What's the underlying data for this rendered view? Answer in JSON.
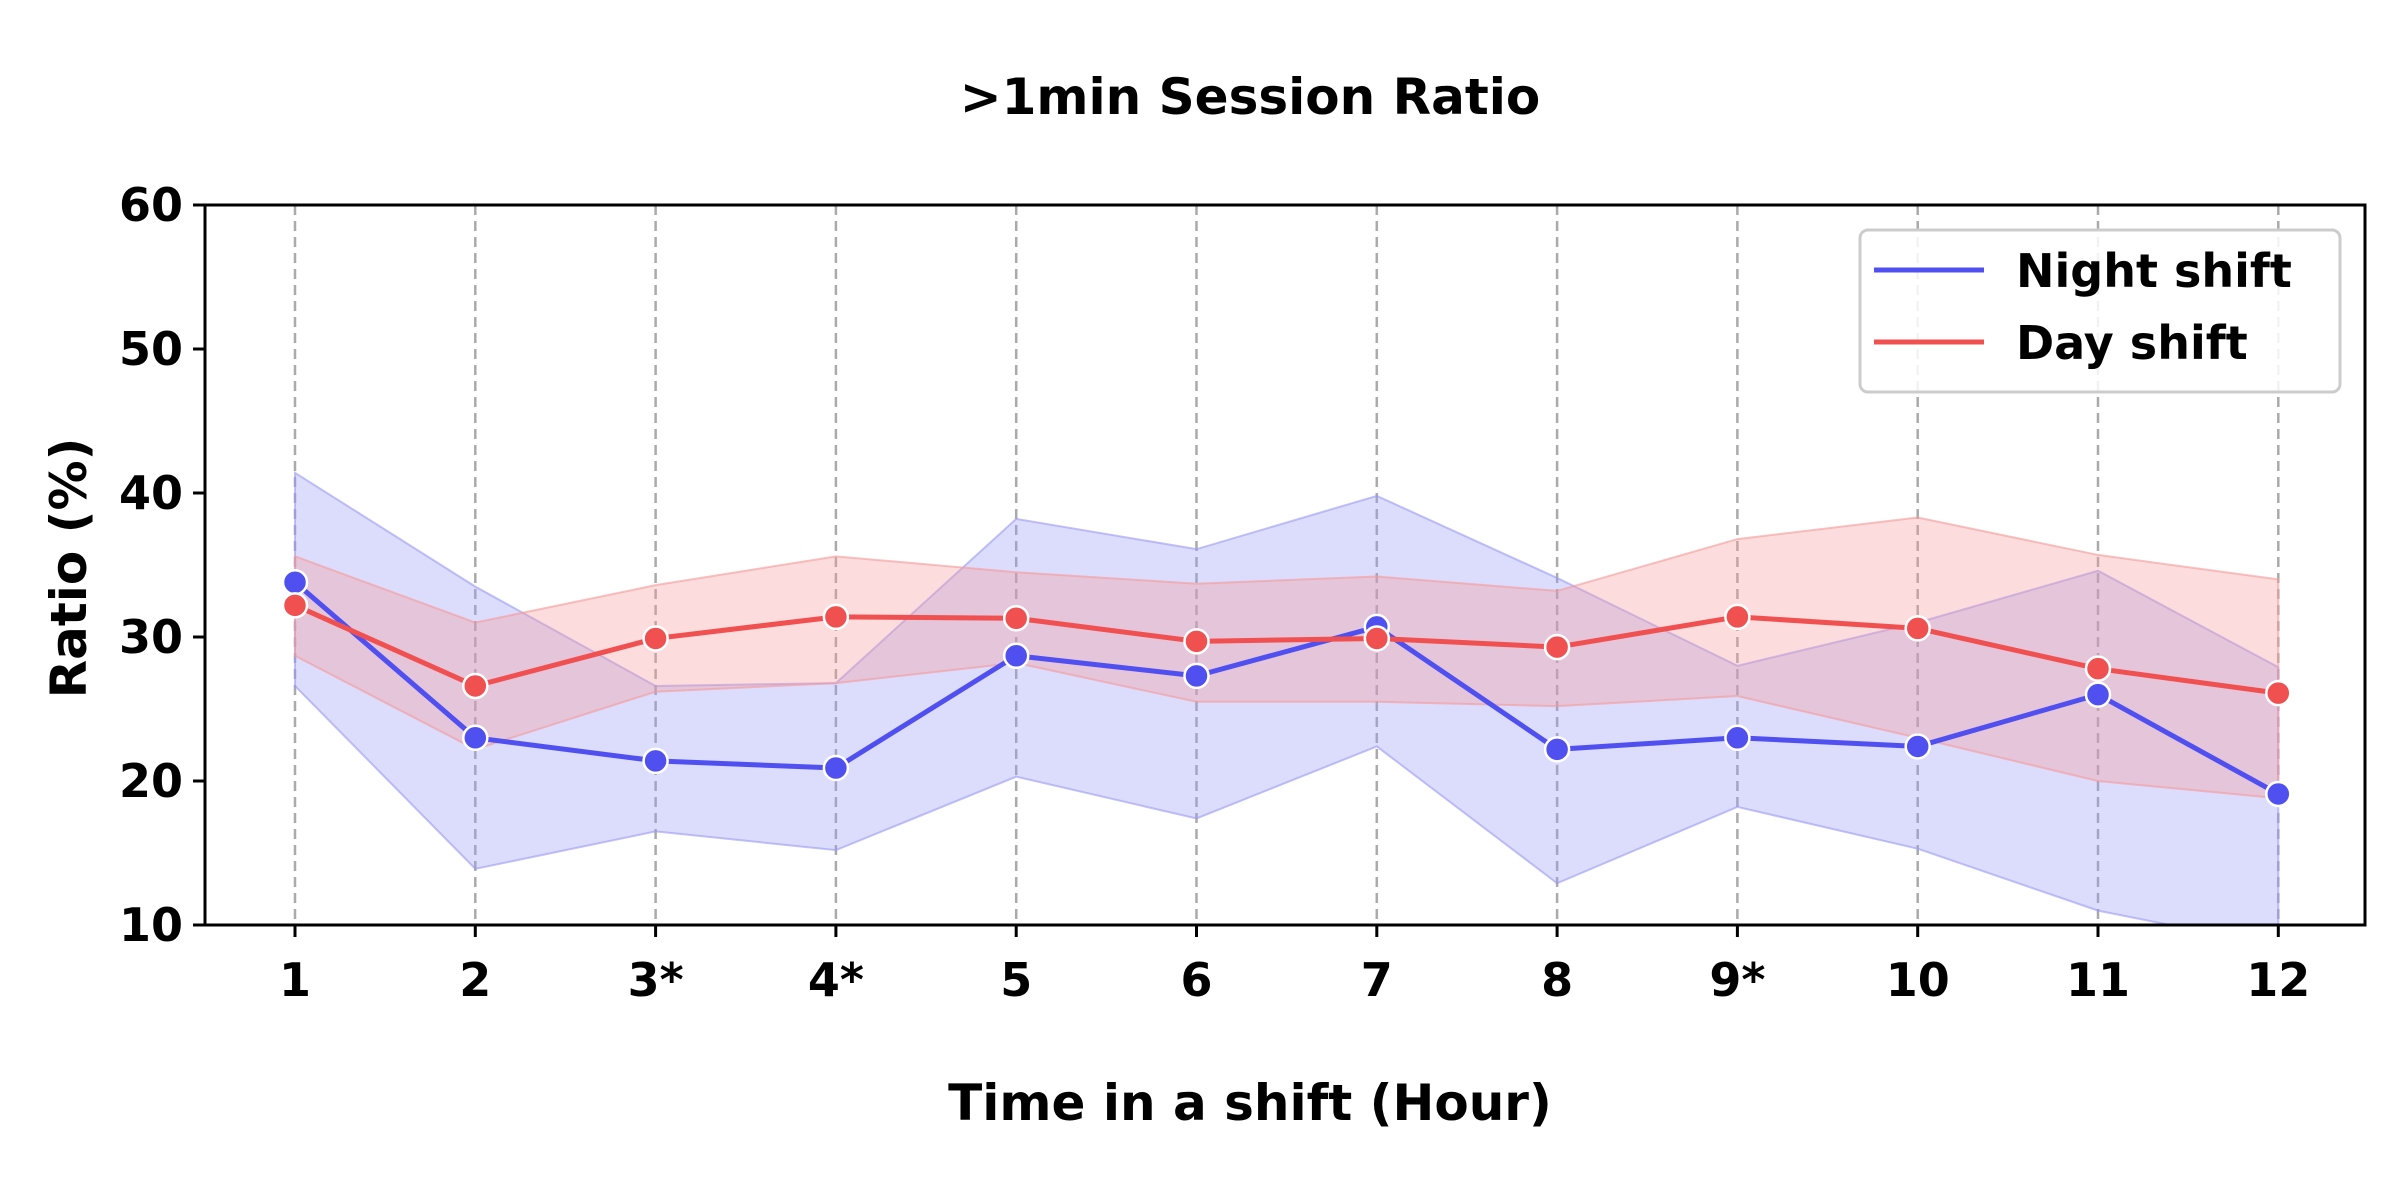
{
  "chart_data": {
    "type": "line",
    "title": ">1min Session Ratio",
    "xlabel": "Time in a shift (Hour)",
    "ylabel": "Ratio (%)",
    "categories": [
      "1",
      "2",
      "3*",
      "4*",
      "5",
      "6",
      "7",
      "8",
      "9*",
      "10",
      "11",
      "12"
    ],
    "ylim": [
      10,
      60
    ],
    "yticks": [
      "10",
      "20",
      "30",
      "40",
      "50",
      "60"
    ],
    "grid": "vertical dashed",
    "legend_position": "top-right",
    "series": [
      {
        "name": "Night shift",
        "color": "#5050f0",
        "band_color": "#9a9af5",
        "values": [
          33.8,
          23.0,
          21.4,
          20.9,
          28.7,
          27.3,
          30.7,
          22.2,
          23.0,
          22.4,
          26.0,
          19.1
        ],
        "upper": [
          41.4,
          33.5,
          26.6,
          26.8,
          38.2,
          36.1,
          39.8,
          34.1,
          28.0,
          31.0,
          34.6,
          27.9
        ],
        "lower": [
          26.6,
          13.9,
          16.5,
          15.2,
          20.3,
          17.4,
          22.4,
          12.9,
          18.2,
          15.3,
          11.0,
          8.5
        ]
      },
      {
        "name": "Day shift",
        "color": "#f05050",
        "band_color": "#f59a9a",
        "values": [
          32.2,
          26.6,
          29.9,
          31.4,
          31.3,
          29.7,
          29.9,
          29.3,
          31.4,
          30.6,
          27.8,
          26.1
        ],
        "upper": [
          35.6,
          31.0,
          33.6,
          35.6,
          34.5,
          33.7,
          34.2,
          33.2,
          36.8,
          38.3,
          35.7,
          34.0
        ],
        "lower": [
          28.7,
          22.2,
          26.2,
          26.8,
          28.2,
          25.5,
          25.5,
          25.2,
          25.9,
          23.0,
          20.0,
          18.8
        ]
      }
    ]
  }
}
